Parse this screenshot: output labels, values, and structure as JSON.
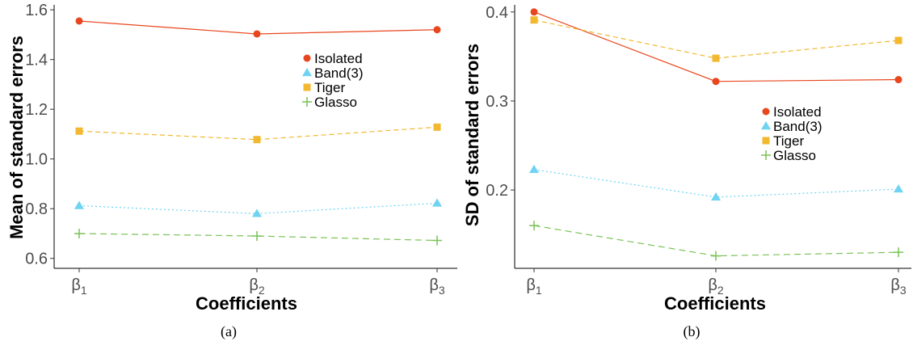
{
  "chart_data": [
    {
      "type": "line",
      "caption": "(a)",
      "xlabel": "Coefficients",
      "ylabel": "Mean of standard errors",
      "categories": [
        {
          "base": "β",
          "sub": "1"
        },
        {
          "base": "β",
          "sub": "2"
        },
        {
          "base": "β",
          "sub": "3"
        }
      ],
      "yticks": [
        "0.6",
        "0.8",
        "1.0",
        "1.2",
        "1.4",
        "1.6"
      ],
      "ylim": [
        0.56,
        1.62
      ],
      "grid": false,
      "legend_position": "top-right",
      "series": [
        {
          "name": "Isolated",
          "values": [
            1.555,
            1.503,
            1.52
          ]
        },
        {
          "name": "Band(3)",
          "values": [
            0.812,
            0.78,
            0.822
          ]
        },
        {
          "name": "Tiger",
          "values": [
            1.112,
            1.078,
            1.128
          ]
        },
        {
          "name": "Glasso",
          "values": [
            0.7,
            0.69,
            0.672
          ]
        }
      ]
    },
    {
      "type": "line",
      "caption": "(b)",
      "xlabel": "Coefficients",
      "ylabel": "SD of standard errors",
      "categories": [
        {
          "base": "β",
          "sub": "1"
        },
        {
          "base": "β",
          "sub": "2"
        },
        {
          "base": "β",
          "sub": "3"
        }
      ],
      "yticks": [
        "0.2",
        "0.3",
        "0.4"
      ],
      "ylim": [
        0.112,
        0.408
      ],
      "grid": false,
      "legend_position": "center-right",
      "series": [
        {
          "name": "Isolated",
          "values": [
            0.4,
            0.322,
            0.324
          ]
        },
        {
          "name": "Band(3)",
          "values": [
            0.223,
            0.192,
            0.201
          ]
        },
        {
          "name": "Tiger",
          "values": [
            0.391,
            0.348,
            0.368
          ]
        },
        {
          "name": "Glasso",
          "values": [
            0.16,
            0.126,
            0.13
          ]
        }
      ]
    }
  ],
  "series_styles": [
    {
      "name": "Isolated",
      "color": "#e8461e",
      "marker": "circle",
      "dash": ""
    },
    {
      "name": "Band(3)",
      "color": "#6fd3f2",
      "marker": "triangle",
      "dash": "2,3"
    },
    {
      "name": "Tiger",
      "color": "#f2b830",
      "marker": "square",
      "dash": "6,4"
    },
    {
      "name": "Glasso",
      "color": "#79c256",
      "marker": "plus",
      "dash": "8,5"
    }
  ]
}
